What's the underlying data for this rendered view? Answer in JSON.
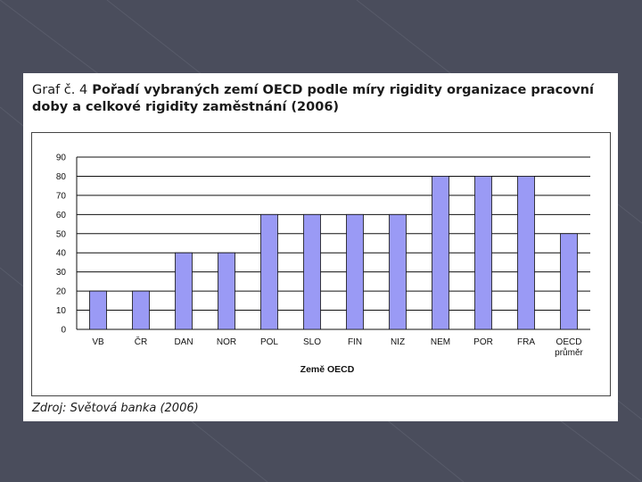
{
  "figure": {
    "title_lead": "Graf č. 4",
    "title_bold": " Pořadí vybraných zemí OECD podle míry rigidity organizace pracovní doby a celkové rigidity zaměstnání (2006)",
    "source": "Zdroj: Světová banka (2006)"
  },
  "chart_data": {
    "type": "bar",
    "title": "",
    "xlabel": "Země OECD",
    "ylabel": "",
    "ylim": [
      0,
      90
    ],
    "yticks": [
      0,
      10,
      20,
      30,
      40,
      50,
      60,
      70,
      80,
      90
    ],
    "grid": true,
    "categories": [
      [
        "VB"
      ],
      [
        "ČR"
      ],
      [
        "DAN"
      ],
      [
        "NOR"
      ],
      [
        "POL"
      ],
      [
        "SLO"
      ],
      [
        "FIN"
      ],
      [
        "NIZ"
      ],
      [
        "NEM"
      ],
      [
        "POR"
      ],
      [
        "FRA"
      ],
      [
        "OECD",
        "průměr"
      ]
    ],
    "values": [
      20,
      20,
      40,
      40,
      60,
      60,
      60,
      60,
      80,
      80,
      80,
      50
    ],
    "bar_color": "#9a9af5",
    "bar_edge_color": "#111111"
  }
}
